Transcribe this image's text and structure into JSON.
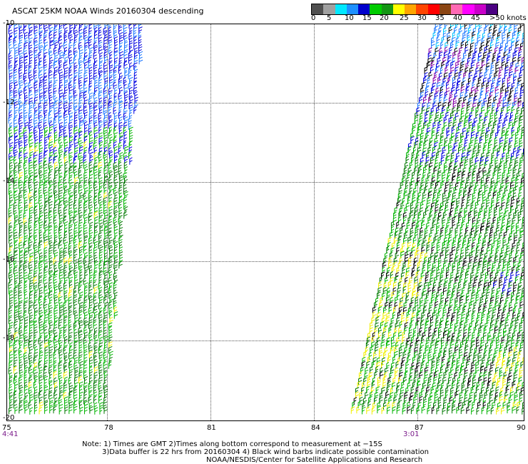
{
  "header": {
    "title": "ASCAT 25KM NOAA Winds 20160304 descending"
  },
  "colorbar": {
    "colors": [
      "#505050",
      "#a0a0a0",
      "#00e8ff",
      "#1e90ff",
      "#0000cc",
      "#00cc00",
      "#149614",
      "#ffff00",
      "#ffa500",
      "#ff4500",
      "#ff0000",
      "#8b4513",
      "#ff69b4",
      "#ff00ff",
      "#c800c8",
      "#4b0082"
    ],
    "labels": [
      "0",
      "5",
      "10",
      "15",
      "20",
      "25",
      "30",
      "35",
      "40",
      "45",
      ">50 knots"
    ]
  },
  "map": {
    "lat_labels": [
      "-10",
      "-12",
      "-14",
      "-16",
      "-18",
      "-20"
    ],
    "lon_labels": [
      "75",
      "78",
      "81",
      "84",
      "87",
      "90"
    ],
    "time_labels": [
      "4:41",
      "3:01"
    ],
    "barb_colors": {
      "green": "#00b400",
      "darkgreen": "#007800",
      "blue": "#0000e0",
      "lightblue": "#1e78ff",
      "cyan": "#00c8ff",
      "yellow": "#f0f000",
      "black": "#000000",
      "purple": "#8800aa"
    }
  },
  "footer": {
    "line1": "Note: 1) Times are GMT 2)Times along bottom correspond to measurement at −15S",
    "line2": "3)Data buffer is 22 hrs from 20160304 4) Black wind barbs indicate possible contamination",
    "line3": "NOAA/NESDIS/Center for Satellite Applications and Research"
  }
}
